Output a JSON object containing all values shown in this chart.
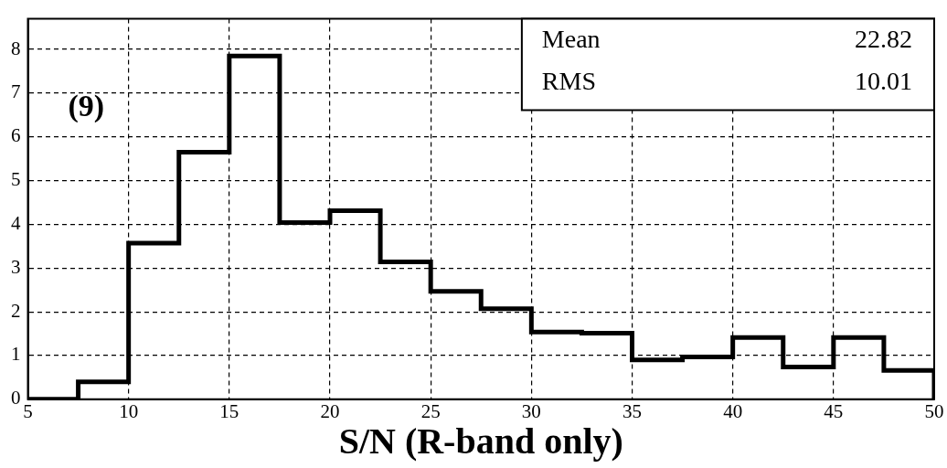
{
  "chart_data": {
    "type": "histogram",
    "xlabel": "S/N (R-band only)",
    "bins": [
      5,
      7.5,
      10,
      12.5,
      15,
      17.5,
      20,
      22.5,
      25,
      27.5,
      30,
      32.5,
      35,
      37.5,
      40,
      42.5,
      45,
      47.5,
      50
    ],
    "values": [
      0,
      0.4,
      3.57,
      5.65,
      7.85,
      4.04,
      4.31,
      3.14,
      2.47,
      2.07,
      1.54,
      1.51,
      0.9,
      0.97,
      1.41,
      0.74,
      1.41,
      0.66
    ],
    "color": "#000000",
    "xlim": [
      5,
      50
    ],
    "xticks": [
      5,
      10,
      15,
      20,
      25,
      30,
      35,
      40,
      45,
      50
    ],
    "ylim": [
      0,
      8.7
    ],
    "yticks": [
      0,
      1,
      2,
      3,
      4,
      5,
      6,
      7,
      8
    ],
    "grid": true,
    "line_style": "solid",
    "annotations": [
      "(9)",
      "Mean",
      "22.82",
      "RMS",
      "10.01"
    ]
  }
}
